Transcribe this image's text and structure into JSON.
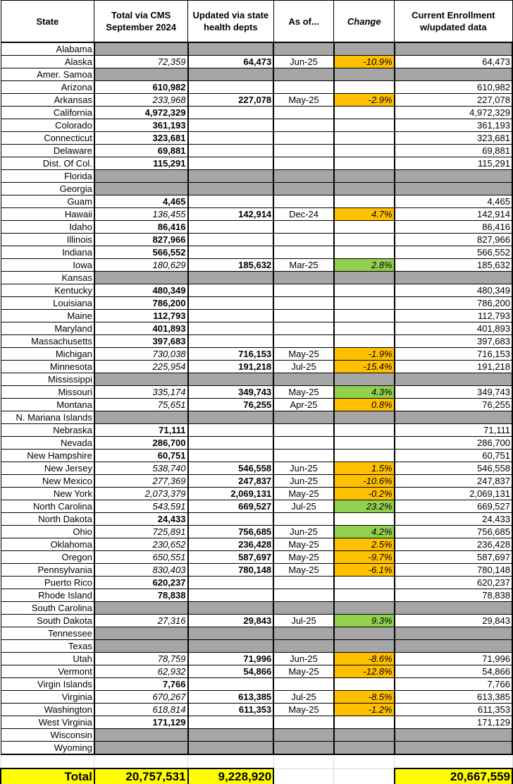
{
  "headers": {
    "state": "State",
    "cms": "Total via CMS September 2024",
    "updated": "Updated via state health depts",
    "asof": "As of...",
    "change": "Change",
    "current": "Current Enrollment w/updated data"
  },
  "colors": {
    "orange": "#ffc000",
    "green": "#92d050",
    "gray": "#a6a6a6",
    "total": "#ffff00"
  },
  "rows": [
    {
      "state": "Alabama",
      "gray": true
    },
    {
      "state": "Alaska",
      "cms": "72,359",
      "updated": "64,473",
      "asof": "Jun-25",
      "change": "-10.9%",
      "color": "orange",
      "current": "64,473"
    },
    {
      "state": "Amer. Samoa",
      "gray": true
    },
    {
      "state": "Arizona",
      "cms": "610,982",
      "current": "610,982"
    },
    {
      "state": "Arkansas",
      "cms": "233,968",
      "updated": "227,078",
      "asof": "May-25",
      "change": "-2.9%",
      "color": "orange",
      "current": "227,078"
    },
    {
      "state": "California",
      "cms": "4,972,329",
      "current": "4,972,329"
    },
    {
      "state": "Colorado",
      "cms": "361,193",
      "current": "361,193"
    },
    {
      "state": "Connecticut",
      "cms": "323,681",
      "current": "323,681"
    },
    {
      "state": "Delaware",
      "cms": "69,881",
      "current": "69,881"
    },
    {
      "state": "Dist. Of Col.",
      "cms": "115,291",
      "current": "115,291"
    },
    {
      "state": "Florida",
      "gray": true
    },
    {
      "state": "Georgia",
      "gray": true
    },
    {
      "state": "Guam",
      "cms": "4,465",
      "current": "4,465"
    },
    {
      "state": "Hawaii",
      "cms": "136,455",
      "updated": "142,914",
      "asof": "Dec-24",
      "change": "4.7%",
      "color": "orange",
      "current": "142,914"
    },
    {
      "state": "Idaho",
      "cms": "86,416",
      "current": "86,416"
    },
    {
      "state": "Illinois",
      "cms": "827,966",
      "current": "827,966"
    },
    {
      "state": "Indiana",
      "cms": "566,552",
      "current": "566,552"
    },
    {
      "state": "Iowa",
      "cms": "180,629",
      "updated": "185,632",
      "asof": "Mar-25",
      "change": "2.8%",
      "color": "green",
      "current": "185,632"
    },
    {
      "state": "Kansas",
      "gray": true
    },
    {
      "state": "Kentucky",
      "cms": "480,349",
      "current": "480,349"
    },
    {
      "state": "Louisiana",
      "cms": "786,200",
      "current": "786,200"
    },
    {
      "state": "Maine",
      "cms": "112,793",
      "current": "112,793"
    },
    {
      "state": "Maryland",
      "cms": "401,893",
      "current": "401,893"
    },
    {
      "state": "Massachusetts",
      "cms": "397,683",
      "current": "397,683"
    },
    {
      "state": "Michigan",
      "cms": "730,038",
      "updated": "716,153",
      "asof": "May-25",
      "change": "-1.9%",
      "color": "orange",
      "current": "716,153"
    },
    {
      "state": "Minnesota",
      "cms": "225,954",
      "updated": "191,218",
      "asof": "Jul-25",
      "change": "-15.4%",
      "color": "orange",
      "current": "191,218"
    },
    {
      "state": "Mississippi",
      "gray": true
    },
    {
      "state": "Missouri",
      "cms": "335,174",
      "updated": "349,743",
      "asof": "May-25",
      "change": "4.3%",
      "color": "green",
      "current": "349,743"
    },
    {
      "state": "Montana",
      "cms": "75,651",
      "updated": "76,255",
      "asof": "Apr-25",
      "change": "0.8%",
      "color": "orange",
      "current": "76,255"
    },
    {
      "state": "N. Mariana Islands",
      "gray": true
    },
    {
      "state": "Nebraska",
      "cms": "71,111",
      "current": "71,111"
    },
    {
      "state": "Nevada",
      "cms": "286,700",
      "current": "286,700"
    },
    {
      "state": "New Hampshire",
      "cms": "60,751",
      "current": "60,751"
    },
    {
      "state": "New Jersey",
      "cms": "538,740",
      "updated": "546,558",
      "asof": "Jun-25",
      "change": "1.5%",
      "color": "orange",
      "current": "546,558"
    },
    {
      "state": "New Mexico",
      "cms": "277,369",
      "updated": "247,837",
      "asof": "Jun-25",
      "change": "-10.6%",
      "color": "orange",
      "current": "247,837"
    },
    {
      "state": "New York",
      "cms": "2,073,379",
      "updated": "2,069,131",
      "asof": "May-25",
      "change": "-0.2%",
      "color": "orange",
      "current": "2,069,131"
    },
    {
      "state": "North Carolina",
      "cms": "543,591",
      "updated": "669,527",
      "asof": "Jul-25",
      "change": "23.2%",
      "color": "green",
      "current": "669,527"
    },
    {
      "state": "North Dakota",
      "cms": "24,433",
      "current": "24,433"
    },
    {
      "state": "Ohio",
      "cms": "725,891",
      "updated": "756,685",
      "asof": "Jun-25",
      "change": "4.2%",
      "color": "green",
      "current": "756,685"
    },
    {
      "state": "Oklahoma",
      "cms": "230,652",
      "updated": "236,428",
      "asof": "May-25",
      "change": "2.5%",
      "color": "orange",
      "current": "236,428"
    },
    {
      "state": "Oregon",
      "cms": "650,551",
      "updated": "587,697",
      "asof": "May-25",
      "change": "-9.7%",
      "color": "orange",
      "current": "587,697"
    },
    {
      "state": "Pennsylvania",
      "cms": "830,403",
      "updated": "780,148",
      "asof": "May-25",
      "change": "-6.1%",
      "color": "orange",
      "current": "780,148"
    },
    {
      "state": "Puerto Rico",
      "cms": "620,237",
      "current": "620,237"
    },
    {
      "state": "Rhode Island",
      "cms": "78,838",
      "current": "78,838"
    },
    {
      "state": "South Carolina",
      "gray": true
    },
    {
      "state": "South Dakota",
      "cms": "27,316",
      "updated": "29,843",
      "asof": "Jul-25",
      "change": "9.3%",
      "color": "green",
      "current": "29,843"
    },
    {
      "state": "Tennessee",
      "gray": true
    },
    {
      "state": "Texas",
      "gray": true
    },
    {
      "state": "Utah",
      "cms": "78,759",
      "updated": "71,996",
      "asof": "Jun-25",
      "change": "-8.6%",
      "color": "orange",
      "current": "71,996"
    },
    {
      "state": "Vermont",
      "cms": "62,932",
      "updated": "54,866",
      "asof": "May-25",
      "change": "-12.8%",
      "color": "orange",
      "current": "54,866"
    },
    {
      "state": "Virgin Islands",
      "cms": "7,766",
      "current": "7,766"
    },
    {
      "state": "Virginia",
      "cms": "670,267",
      "updated": "613,385",
      "asof": "Jul-25",
      "change": "-8.5%",
      "color": "orange",
      "current": "613,385"
    },
    {
      "state": "Washington",
      "cms": "618,814",
      "updated": "611,353",
      "asof": "May-25",
      "change": "-1.2%",
      "color": "orange",
      "current": "611,353"
    },
    {
      "state": "West Virginia",
      "cms": "171,129",
      "current": "171,129"
    },
    {
      "state": "Wisconsin",
      "gray": true
    },
    {
      "state": "Wyoming",
      "gray": true
    }
  ],
  "total": {
    "label": "Total",
    "cms": "20,757,531",
    "updated": "9,228,920",
    "current": "20,667,559"
  }
}
